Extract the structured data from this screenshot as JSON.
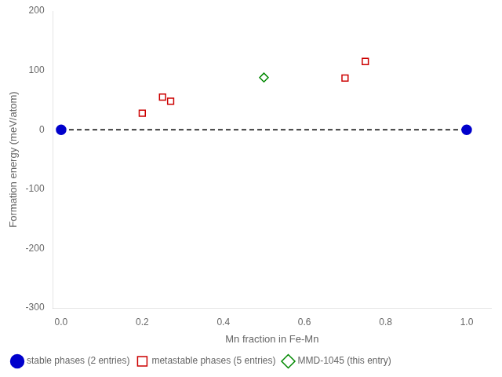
{
  "chart_data": {
    "type": "scatter",
    "x_label": "Mn fraction in Fe-Mn",
    "y_label": "Formation energy (meV/atom)",
    "xlim": [
      -0.02,
      1.06
    ],
    "ylim": [
      -300,
      200
    ],
    "xticks": [
      {
        "value": 0,
        "label": "0.0"
      },
      0.2,
      0.4,
      0.6,
      0.8,
      {
        "value": 1,
        "label": "1.0"
      }
    ],
    "yticks": [
      -300,
      -200,
      -100,
      0,
      100,
      200
    ],
    "grid": false,
    "legend": "lower left",
    "series": [
      {
        "type": "line",
        "line_style": "dashed",
        "color": "#000000",
        "x": [
          0.0,
          1.0
        ],
        "values": [
          0.0,
          0.0
        ]
      },
      {
        "name": "stable phases (2 entries)",
        "type": "scatter",
        "marker": "circle",
        "color": "#0000cc",
        "x": [
          0.0,
          1.0
        ],
        "values": [
          0.0,
          0.0
        ]
      },
      {
        "name": "metastable phases (5 entries)",
        "type": "scatter",
        "marker": "open-square",
        "color": "#cc0000",
        "x": [
          0.2,
          0.25,
          0.27,
          0.7,
          0.75
        ],
        "values": [
          28,
          55,
          48,
          87,
          115
        ]
      },
      {
        "name": "MMD-1045 (this entry)",
        "type": "scatter",
        "marker": "open-diamond",
        "color": "#008800",
        "x": [
          0.5
        ],
        "values": [
          88
        ]
      }
    ]
  }
}
